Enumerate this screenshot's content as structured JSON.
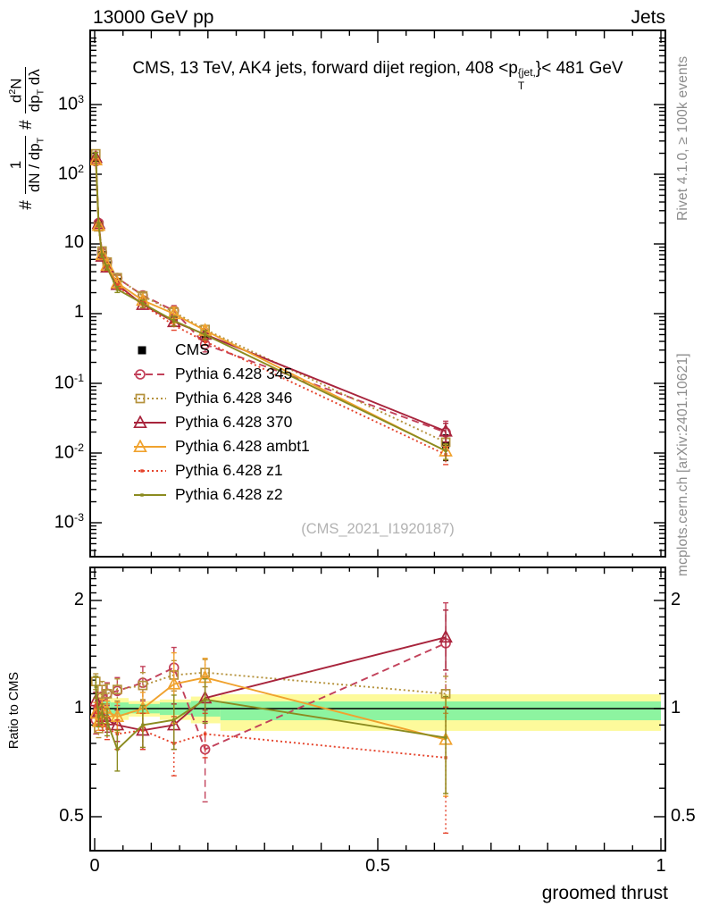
{
  "header": {
    "left_label": "13000 GeV pp",
    "right_label": "Jets"
  },
  "plot_title": {
    "text_before": "CMS, 13 TeV, AK4 jets, forward dijet region, 408 <p",
    "sup": "{jet,",
    "sub": "T",
    "text_after": "}< 481 GeV"
  },
  "y_axis_label": {
    "hash_1": "#",
    "frac1_num": "1",
    "frac1_den": "dN / dp_{T}",
    "hash_2": "#",
    "frac2_num": "d^{2}N",
    "frac2_den": "dp_{T} dλ"
  },
  "right_notes": {
    "top": "Rivet 4.1.0, ≥ 100k events",
    "bottom": "mcplots.cern.ch [arXiv:2401.10621]"
  },
  "watermark": "(CMS_2021_I1920187)",
  "ratio_panel": {
    "ylabel": "Ratio to CMS",
    "ytick_labels": [
      "2",
      "1",
      "0.5"
    ],
    "ytick_values": [
      2,
      1,
      0.5
    ]
  },
  "x_axis": {
    "label": "groomed thrust",
    "tick_labels": [
      "0",
      "0.5",
      "1"
    ],
    "tick_values": [
      0,
      0.5,
      1
    ]
  },
  "main_y_ticks": {
    "labels": [
      "10^{3}",
      "10^{2}",
      "10",
      "1",
      "10^{-1}",
      "10^{-2}",
      "10^{-3}"
    ],
    "values": [
      1000,
      100,
      10,
      1,
      0.1,
      0.01,
      0.001
    ]
  },
  "chart_data": {
    "type": "line",
    "xlabel": "groomed thrust",
    "xlim": [
      0,
      1
    ],
    "main_ylog_decades": [
      -3,
      3
    ],
    "ratio_ylim_log2": [
      0.4,
      2.45
    ],
    "x": [
      0.002,
      0.007,
      0.013,
      0.022,
      0.04,
      0.085,
      0.14,
      0.195,
      0.62
    ],
    "series": [
      {
        "name": "CMS",
        "color": "#000000",
        "dash": "none",
        "line": false,
        "marker": "filled-square",
        "values": [
          165,
          20,
          7.0,
          5.0,
          2.9,
          1.55,
          0.85,
          0.47,
          0.013
        ],
        "err_frac": [
          0.1,
          0.08,
          0.08,
          0.08,
          0.09,
          0.1,
          0.12,
          0.15,
          0.4
        ]
      },
      {
        "name": "Pythia 6.428 345",
        "color": "#c2415a",
        "dash": "8,5",
        "line": true,
        "marker": "circle",
        "ratio_to_cms": [
          0.93,
          1.0,
          1.08,
          1.1,
          1.12,
          1.18,
          1.3,
          0.77,
          1.52
        ],
        "err_frac": [
          0.08,
          0.07,
          0.08,
          0.08,
          0.1,
          0.13,
          0.18,
          0.22,
          0.45
        ]
      },
      {
        "name": "Pythia 6.428 346",
        "color": "#b5923c",
        "dash": "2,3",
        "line": true,
        "marker": "square",
        "ratio_to_cms": [
          1.19,
          0.88,
          1.13,
          1.1,
          1.13,
          1.16,
          1.24,
          1.26,
          1.1
        ],
        "err_frac": [
          0.06,
          0.05,
          0.06,
          0.07,
          0.08,
          0.1,
          0.12,
          0.11,
          0.13
        ]
      },
      {
        "name": "Pythia 6.428 370",
        "color": "#a8243c",
        "dash": "none",
        "line": true,
        "marker": "triangle",
        "ratio_to_cms": [
          1.05,
          0.98,
          0.95,
          0.93,
          0.9,
          0.87,
          0.9,
          1.07,
          1.58
        ],
        "err_frac": [
          0.06,
          0.05,
          0.06,
          0.07,
          0.09,
          0.1,
          0.13,
          0.15,
          0.3
        ]
      },
      {
        "name": "Pythia 6.428 ambt1",
        "color": "#f0a22e",
        "dash": "none",
        "line": true,
        "marker": "triangle",
        "ratio_to_cms": [
          0.97,
          0.92,
          1.0,
          0.98,
          0.95,
          1.0,
          1.17,
          1.22,
          0.82
        ],
        "err_frac": [
          0.07,
          0.05,
          0.06,
          0.07,
          0.09,
          0.11,
          0.26,
          0.16,
          0.25
        ]
      },
      {
        "name": "Pythia 6.428 z1",
        "color": "#e5432b",
        "dash": "2,3",
        "line": true,
        "marker": "dot",
        "ratio_to_cms": [
          1.02,
          0.95,
          0.92,
          0.88,
          0.85,
          0.87,
          0.8,
          0.85,
          0.73
        ],
        "err_frac": [
          0.05,
          0.05,
          0.05,
          0.06,
          0.08,
          0.1,
          0.15,
          0.12,
          0.28
        ]
      },
      {
        "name": "Pythia 6.428 z2",
        "color": "#8b8b20",
        "dash": "none",
        "line": true,
        "marker": "dot",
        "ratio_to_cms": [
          1.15,
          0.95,
          0.97,
          0.92,
          0.77,
          0.9,
          0.93,
          1.06,
          0.83
        ],
        "err_frac": [
          0.08,
          0.06,
          0.06,
          0.08,
          0.1,
          0.12,
          0.16,
          0.15,
          0.25
        ]
      }
    ],
    "uncertainty_bands": {
      "yellow_color": "#fdfa9b",
      "green_color": "#8df4a0",
      "segments": [
        {
          "x0": 0.0,
          "x1": 0.012,
          "ylo": 0.9,
          "yhi": 1.1,
          "glo": 0.95,
          "ghi": 1.06
        },
        {
          "x0": 0.012,
          "x1": 0.028,
          "ylo": 0.92,
          "yhi": 1.08,
          "glo": 0.96,
          "ghi": 1.05
        },
        {
          "x0": 0.028,
          "x1": 0.06,
          "ylo": 0.93,
          "yhi": 1.07,
          "glo": 0.96,
          "ghi": 1.04
        },
        {
          "x0": 0.06,
          "x1": 0.115,
          "ylo": 0.95,
          "yhi": 1.05,
          "glo": 0.97,
          "ghi": 1.03
        },
        {
          "x0": 0.115,
          "x1": 0.17,
          "ylo": 0.93,
          "yhi": 1.06,
          "glo": 0.96,
          "ghi": 1.04
        },
        {
          "x0": 0.17,
          "x1": 0.222,
          "ylo": 0.91,
          "yhi": 1.08,
          "glo": 0.95,
          "ghi": 1.05
        },
        {
          "x0": 0.222,
          "x1": 1.0,
          "ylo": 0.867,
          "yhi": 1.096,
          "glo": 0.928,
          "ghi": 1.047
        }
      ]
    }
  }
}
